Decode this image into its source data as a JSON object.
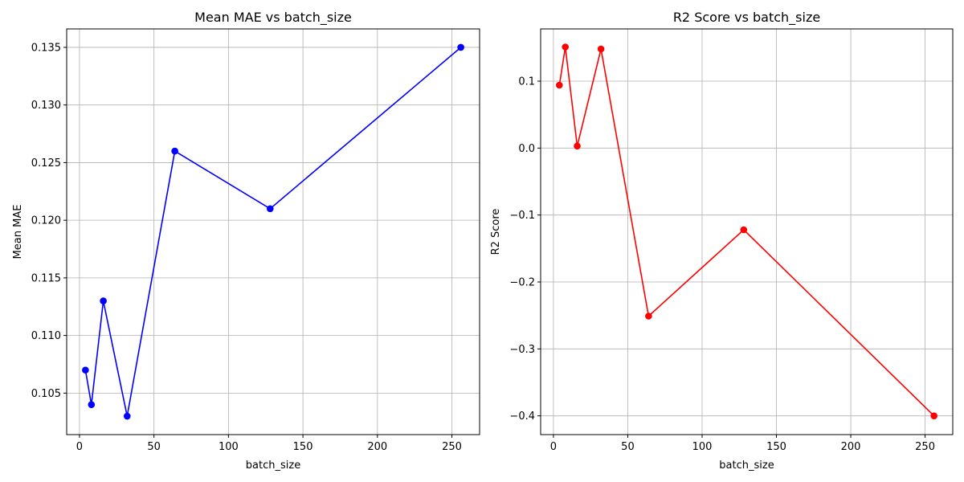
{
  "chart_data": [
    {
      "type": "line",
      "title": "Mean MAE vs batch_size",
      "xlabel": "batch_size",
      "ylabel": "Mean MAE",
      "x": [
        4,
        8,
        16,
        32,
        64,
        128,
        256
      ],
      "series": [
        {
          "values": [
            0.107,
            0.104,
            0.113,
            0.103,
            0.126,
            0.121,
            0.135
          ],
          "color": "#0000ff"
        }
      ],
      "xlim": [
        -8.6,
        268.6
      ],
      "ylim": [
        0.1014,
        0.1366
      ],
      "xticks": [
        0,
        50,
        100,
        150,
        200,
        250
      ],
      "xtick_labels": [
        "0",
        "50",
        "100",
        "150",
        "200",
        "250"
      ],
      "yticks": [
        0.105,
        0.11,
        0.115,
        0.12,
        0.125,
        0.13,
        0.135
      ],
      "ytick_labels": [
        "0.105",
        "0.110",
        "0.115",
        "0.120",
        "0.125",
        "0.130",
        "0.135"
      ],
      "grid": true,
      "marker": "circle"
    },
    {
      "type": "line",
      "title": "R2 Score vs batch_size",
      "xlabel": "batch_size",
      "ylabel": "R2 Score",
      "x": [
        4,
        8,
        16,
        32,
        64,
        128,
        256
      ],
      "series": [
        {
          "values": [
            0.094,
            0.151,
            0.003,
            0.148,
            -0.251,
            -0.122,
            -0.4
          ],
          "color": "#ff0000"
        }
      ],
      "xlim": [
        -8.6,
        268.6
      ],
      "ylim": [
        -0.428,
        0.178
      ],
      "xticks": [
        0,
        50,
        100,
        150,
        200,
        250
      ],
      "xtick_labels": [
        "0",
        "50",
        "100",
        "150",
        "200",
        "250"
      ],
      "yticks": [
        -0.4,
        -0.3,
        -0.2,
        -0.1,
        0.0,
        0.1
      ],
      "ytick_labels": [
        "−0.4",
        "−0.3",
        "−0.2",
        "−0.1",
        "0.0",
        "0.1"
      ],
      "grid": true,
      "marker": "circle"
    }
  ]
}
